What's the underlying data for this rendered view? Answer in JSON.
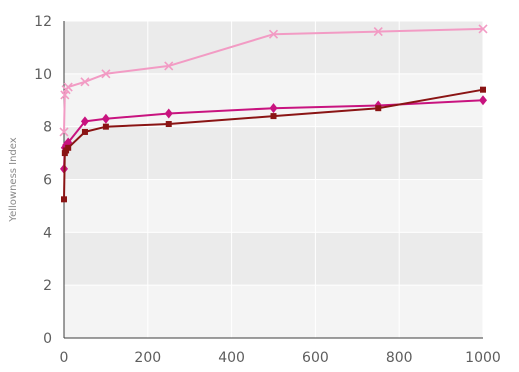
{
  "chart_data": {
    "type": "line",
    "title": "",
    "xlabel": "",
    "ylabel": "Yellowness Index",
    "xlim": [
      0,
      1000
    ],
    "ylim": [
      0,
      12
    ],
    "x_ticks": [
      0,
      200,
      400,
      600,
      800,
      1000
    ],
    "y_ticks": [
      0,
      2,
      4,
      6,
      8,
      10,
      12
    ],
    "x_tick_labels": [
      "0",
      "200",
      "400",
      "600",
      "800",
      "1000"
    ],
    "y_tick_labels": [
      "0",
      "2",
      "4",
      "6",
      "8",
      "10",
      "12"
    ],
    "grid": true,
    "legend": "none",
    "background_bands": [
      "#ebebeb",
      "#f4f4f4"
    ],
    "series": [
      {
        "marker": "x",
        "color": "#f29bc4",
        "x": [
          0,
          2,
          5,
          10,
          50,
          100,
          250,
          500,
          750,
          1000
        ],
        "y": [
          7.8,
          9.2,
          9.4,
          9.5,
          9.7,
          10.0,
          10.3,
          11.5,
          11.6,
          11.7
        ]
      },
      {
        "marker": "diamond",
        "color": "#c8137f",
        "x": [
          0,
          2,
          5,
          10,
          50,
          100,
          250,
          500,
          750,
          1000
        ],
        "y": [
          6.4,
          7.2,
          7.3,
          7.4,
          8.2,
          8.3,
          8.5,
          8.7,
          8.8,
          9.0
        ]
      },
      {
        "marker": "square",
        "color": "#8a1414",
        "x": [
          0,
          2,
          5,
          10,
          50,
          100,
          250,
          500,
          750,
          1000
        ],
        "y": [
          5.25,
          7.0,
          7.1,
          7.2,
          7.8,
          8.0,
          8.1,
          8.4,
          8.7,
          9.4
        ]
      }
    ]
  }
}
